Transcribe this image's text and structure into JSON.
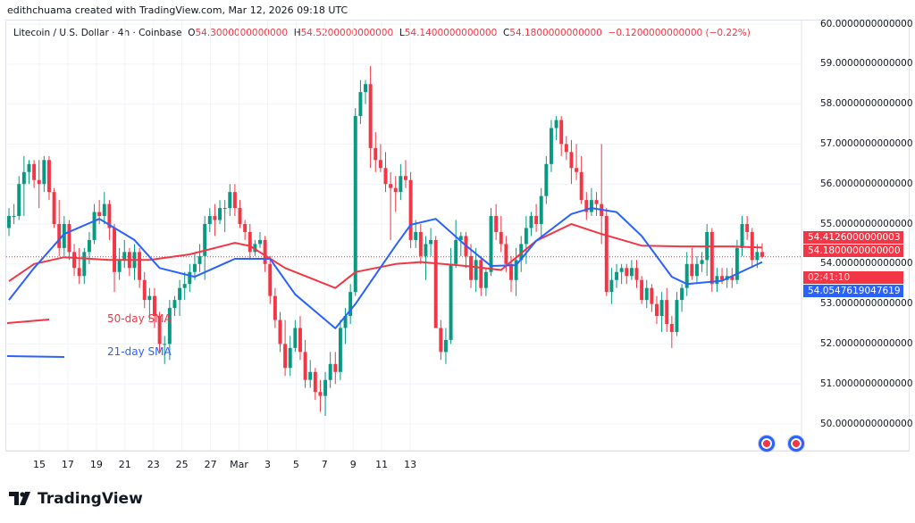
{
  "header": {
    "credit": "edithchuama created with TradingView.com, Mar 12, 2026 09:18 UTC",
    "symbol": "Litecoin / U.S. Dollar · 4h · Coinbase",
    "o_label": "O",
    "o": "54.3000000000000",
    "h_label": "H",
    "h": "54.5200000000000",
    "l_label": "L",
    "l": "54.1400000000000",
    "c_label": "C",
    "c": "54.1800000000000",
    "change": "−0.1200000000000 (−0.22%)"
  },
  "price_labels": {
    "sma50": "54.4126000000003",
    "last": "54.1800000000000",
    "countdown": "02:41:10",
    "sma21": "54.0547619047619"
  },
  "legend": {
    "sma50": "50-day SMA",
    "sma21": "21-day SMA"
  },
  "brand": "TradingView",
  "colors": {
    "up": "#089981",
    "down": "#f23645",
    "sma50": "#f23645",
    "sma21": "#2962ff"
  },
  "chart_data": {
    "type": "candlestick",
    "interval": "4h",
    "ylim": [
      50,
      60
    ],
    "yticks": [
      "60.0000000000000",
      "59.0000000000000",
      "58.0000000000000",
      "57.0000000000000",
      "56.0000000000000",
      "55.0000000000000",
      "54.0000000000000",
      "53.0000000000000",
      "52.0000000000000",
      "51.0000000000000",
      "50.0000000000000"
    ],
    "xticks": [
      "15",
      "17",
      "19",
      "21",
      "23",
      "25",
      "27",
      "Mar",
      "3",
      "5",
      "7",
      "9",
      "11",
      "13"
    ],
    "grid": true,
    "candles": [
      [
        54.9,
        55.4,
        54.7,
        55.2
      ],
      [
        55.2,
        55.5,
        55.0,
        55.2
      ],
      [
        55.2,
        56.2,
        55.1,
        56.0
      ],
      [
        56.0,
        56.7,
        55.2,
        56.3
      ],
      [
        56.3,
        56.6,
        56.0,
        56.5
      ],
      [
        56.5,
        56.6,
        55.9,
        56.1
      ],
      [
        56.1,
        56.6,
        55.4,
        56.0
      ],
      [
        56.0,
        56.7,
        55.8,
        56.6
      ],
      [
        56.6,
        56.7,
        55.6,
        55.8
      ],
      [
        55.8,
        55.9,
        54.9,
        55.0
      ],
      [
        55.0,
        55.6,
        54.2,
        54.4
      ],
      [
        54.4,
        55.2,
        54.2,
        55.0
      ],
      [
        55.0,
        55.1,
        54.1,
        54.3
      ],
      [
        54.3,
        54.5,
        53.7,
        53.9
      ],
      [
        53.9,
        54.4,
        53.5,
        53.7
      ],
      [
        53.7,
        54.4,
        53.5,
        54.3
      ],
      [
        54.3,
        54.8,
        54.0,
        54.6
      ],
      [
        54.6,
        55.5,
        54.5,
        55.3
      ],
      [
        55.3,
        55.6,
        55.0,
        55.2
      ],
      [
        55.2,
        55.8,
        55.0,
        55.5
      ],
      [
        55.5,
        55.6,
        54.6,
        54.9
      ],
      [
        54.9,
        55.0,
        53.3,
        53.8
      ],
      [
        53.8,
        54.4,
        53.6,
        54.1
      ],
      [
        54.1,
        54.6,
        53.9,
        54.3
      ],
      [
        54.3,
        54.4,
        53.7,
        53.9
      ],
      [
        53.9,
        54.5,
        53.6,
        54.3
      ],
      [
        54.3,
        54.4,
        53.4,
        53.6
      ],
      [
        53.6,
        53.8,
        52.9,
        53.1
      ],
      [
        53.1,
        53.4,
        52.6,
        53.2
      ],
      [
        53.2,
        53.4,
        52.4,
        52.7
      ],
      [
        52.7,
        52.8,
        51.8,
        52.0
      ],
      [
        52.0,
        52.2,
        51.5,
        52.0
      ],
      [
        52.0,
        53.1,
        51.6,
        52.9
      ],
      [
        52.9,
        53.2,
        52.7,
        53.1
      ],
      [
        53.1,
        53.6,
        52.7,
        53.4
      ],
      [
        53.4,
        53.8,
        53.1,
        53.5
      ],
      [
        53.5,
        54.0,
        53.3,
        53.8
      ],
      [
        53.8,
        54.3,
        53.6,
        54.0
      ],
      [
        54.0,
        54.5,
        53.8,
        54.2
      ],
      [
        54.2,
        55.2,
        53.6,
        55.0
      ],
      [
        55.0,
        55.4,
        54.8,
        55.2
      ],
      [
        55.2,
        55.5,
        54.7,
        55.1
      ],
      [
        55.1,
        55.6,
        55.0,
        55.4
      ],
      [
        55.4,
        55.6,
        54.8,
        55.4
      ],
      [
        55.4,
        56.0,
        55.2,
        55.8
      ],
      [
        55.8,
        56.0,
        55.2,
        55.4
      ],
      [
        55.4,
        55.6,
        54.9,
        55.0
      ],
      [
        55.0,
        55.1,
        54.6,
        54.8
      ],
      [
        54.8,
        55.0,
        54.1,
        54.3
      ],
      [
        54.3,
        54.6,
        54.2,
        54.5
      ],
      [
        54.5,
        54.8,
        54.4,
        54.6
      ],
      [
        54.6,
        54.7,
        53.8,
        54.0
      ],
      [
        54.0,
        54.2,
        53.0,
        53.2
      ],
      [
        53.2,
        53.4,
        52.4,
        52.6
      ],
      [
        52.6,
        52.8,
        51.8,
        52.0
      ],
      [
        52.0,
        52.6,
        51.2,
        51.4
      ],
      [
        51.4,
        52.2,
        51.2,
        51.9
      ],
      [
        51.9,
        52.6,
        51.8,
        52.4
      ],
      [
        52.4,
        52.7,
        51.6,
        51.8
      ],
      [
        51.8,
        52.1,
        50.9,
        51.1
      ],
      [
        51.1,
        51.6,
        50.9,
        51.3
      ],
      [
        51.3,
        51.4,
        50.6,
        50.8
      ],
      [
        50.8,
        51.1,
        50.3,
        50.7
      ],
      [
        50.7,
        51.3,
        50.2,
        51.1
      ],
      [
        51.1,
        51.8,
        50.9,
        51.5
      ],
      [
        51.5,
        51.8,
        51.0,
        51.3
      ],
      [
        51.3,
        52.6,
        51.1,
        52.4
      ],
      [
        52.4,
        52.9,
        52.0,
        52.7
      ],
      [
        52.7,
        53.5,
        52.5,
        53.3
      ],
      [
        53.3,
        57.9,
        53.2,
        57.7
      ],
      [
        57.7,
        58.6,
        57.5,
        58.3
      ],
      [
        58.3,
        58.6,
        58.0,
        58.5
      ],
      [
        58.5,
        58.95,
        56.4,
        56.9
      ],
      [
        56.9,
        57.3,
        56.3,
        56.6
      ],
      [
        56.6,
        57.0,
        56.3,
        56.4
      ],
      [
        56.4,
        56.8,
        55.8,
        56.0
      ],
      [
        56.0,
        56.3,
        54.6,
        55.9
      ],
      [
        55.9,
        56.2,
        55.3,
        55.8
      ],
      [
        55.8,
        56.5,
        55.6,
        56.2
      ],
      [
        56.2,
        56.6,
        55.9,
        56.1
      ],
      [
        56.1,
        56.3,
        54.4,
        54.6
      ],
      [
        54.6,
        55.1,
        54.4,
        54.8
      ],
      [
        54.8,
        55.0,
        54.0,
        54.2
      ],
      [
        54.2,
        54.7,
        53.6,
        54.5
      ],
      [
        54.5,
        54.9,
        54.2,
        54.6
      ],
      [
        54.6,
        54.7,
        52.4,
        52.4
      ],
      [
        52.4,
        52.6,
        51.6,
        51.8
      ],
      [
        51.8,
        52.4,
        51.5,
        52.1
      ],
      [
        52.1,
        54.4,
        52.0,
        54.0
      ],
      [
        54.0,
        55.1,
        53.9,
        54.6
      ],
      [
        54.6,
        54.8,
        54.2,
        54.7
      ],
      [
        54.7,
        54.8,
        53.9,
        54.2
      ],
      [
        54.2,
        54.5,
        53.4,
        53.6
      ],
      [
        53.6,
        54.4,
        53.3,
        54.1
      ],
      [
        54.1,
        54.2,
        53.2,
        53.4
      ],
      [
        53.4,
        53.9,
        53.2,
        53.8
      ],
      [
        53.8,
        55.4,
        53.7,
        55.2
      ],
      [
        55.2,
        55.5,
        54.6,
        54.8
      ],
      [
        54.8,
        55.2,
        54.3,
        54.5
      ],
      [
        54.5,
        54.7,
        53.8,
        54.0
      ],
      [
        54.0,
        54.2,
        53.3,
        53.6
      ],
      [
        53.6,
        54.4,
        53.2,
        54.1
      ],
      [
        54.1,
        54.7,
        53.8,
        54.5
      ],
      [
        54.5,
        55.2,
        54.0,
        54.9
      ],
      [
        54.9,
        55.3,
        54.7,
        55.2
      ],
      [
        55.2,
        55.5,
        54.8,
        55.0
      ],
      [
        55.0,
        55.9,
        54.7,
        55.7
      ],
      [
        55.7,
        56.7,
        55.5,
        56.5
      ],
      [
        56.5,
        57.6,
        56.3,
        57.4
      ],
      [
        57.4,
        57.7,
        57.1,
        57.6
      ],
      [
        57.6,
        57.7,
        56.7,
        57.0
      ],
      [
        57.0,
        57.2,
        56.6,
        56.8
      ],
      [
        56.8,
        57.1,
        56.0,
        56.4
      ],
      [
        56.4,
        57.0,
        56.1,
        56.3
      ],
      [
        56.3,
        56.7,
        55.5,
        55.6
      ],
      [
        55.6,
        55.8,
        55.1,
        55.3
      ],
      [
        55.3,
        55.9,
        55.2,
        55.6
      ],
      [
        55.6,
        55.8,
        55.2,
        55.5
      ],
      [
        55.5,
        57.0,
        54.5,
        55.2
      ],
      [
        55.2,
        55.4,
        53.2,
        53.3
      ],
      [
        53.3,
        53.9,
        53.0,
        53.6
      ],
      [
        53.6,
        54.0,
        53.4,
        53.8
      ],
      [
        53.8,
        54.0,
        53.5,
        53.9
      ],
      [
        53.9,
        54.0,
        53.5,
        53.7
      ],
      [
        53.7,
        54.1,
        53.6,
        53.9
      ],
      [
        53.9,
        54.1,
        53.4,
        53.6
      ],
      [
        53.6,
        53.7,
        53.0,
        53.1
      ],
      [
        53.1,
        53.6,
        52.9,
        53.4
      ],
      [
        53.4,
        53.5,
        52.8,
        53.0
      ],
      [
        53.0,
        53.2,
        52.5,
        52.7
      ],
      [
        52.7,
        53.3,
        52.3,
        53.1
      ],
      [
        53.1,
        53.4,
        52.3,
        52.5
      ],
      [
        52.5,
        52.7,
        51.9,
        52.3
      ],
      [
        52.3,
        53.3,
        52.2,
        53.1
      ],
      [
        53.1,
        53.5,
        52.8,
        53.4
      ],
      [
        53.4,
        54.3,
        53.2,
        54.0
      ],
      [
        54.0,
        54.4,
        53.6,
        53.7
      ],
      [
        53.7,
        54.2,
        53.5,
        54.0
      ],
      [
        54.0,
        54.3,
        53.8,
        54.1
      ],
      [
        54.1,
        55.0,
        53.7,
        54.8
      ],
      [
        54.8,
        54.9,
        53.3,
        53.5
      ],
      [
        53.5,
        53.9,
        53.3,
        53.7
      ],
      [
        53.7,
        53.9,
        53.5,
        53.6
      ],
      [
        53.6,
        53.9,
        53.4,
        53.7
      ],
      [
        53.7,
        53.9,
        53.4,
        53.6
      ],
      [
        53.6,
        54.6,
        53.5,
        54.4
      ],
      [
        54.4,
        55.2,
        54.2,
        55.0
      ],
      [
        55.0,
        55.2,
        54.6,
        54.8
      ],
      [
        54.8,
        54.9,
        53.9,
        54.1
      ],
      [
        54.1,
        54.5,
        53.9,
        54.3
      ],
      [
        54.3,
        54.52,
        54.14,
        54.18
      ]
    ],
    "series": [
      {
        "name": "50-day SMA",
        "points": [
          [
            0,
            53.57
          ],
          [
            5,
            54.0
          ],
          [
            11,
            54.17
          ],
          [
            20,
            54.1
          ],
          [
            28,
            54.1
          ],
          [
            36,
            54.24
          ],
          [
            45,
            54.53
          ],
          [
            48,
            54.45
          ],
          [
            55,
            53.9
          ],
          [
            65,
            53.4
          ],
          [
            69,
            53.8
          ],
          [
            77,
            54.0
          ],
          [
            82,
            54.05
          ],
          [
            91,
            53.95
          ],
          [
            98,
            53.85
          ],
          [
            105,
            54.58
          ],
          [
            112,
            55.0
          ],
          [
            118,
            54.75
          ],
          [
            126,
            54.46
          ],
          [
            134,
            54.44
          ],
          [
            144,
            54.44
          ],
          [
            150,
            54.41
          ]
        ]
      },
      {
        "name": "21-day SMA",
        "points": [
          [
            0,
            53.1
          ],
          [
            5,
            53.9
          ],
          [
            11,
            54.75
          ],
          [
            18,
            55.13
          ],
          [
            25,
            54.6
          ],
          [
            30,
            53.9
          ],
          [
            37,
            53.68
          ],
          [
            45,
            54.13
          ],
          [
            52,
            54.13
          ],
          [
            57,
            53.24
          ],
          [
            65,
            52.39
          ],
          [
            69,
            53.0
          ],
          [
            77,
            54.46
          ],
          [
            80,
            54.98
          ],
          [
            85,
            55.13
          ],
          [
            91,
            54.46
          ],
          [
            96,
            53.95
          ],
          [
            101,
            53.97
          ],
          [
            105,
            54.58
          ],
          [
            112,
            55.25
          ],
          [
            116,
            55.4
          ],
          [
            121,
            55.3
          ],
          [
            126,
            54.7
          ],
          [
            132,
            53.68
          ],
          [
            135,
            53.5
          ],
          [
            142,
            53.58
          ],
          [
            150,
            54.05
          ]
        ]
      }
    ]
  }
}
